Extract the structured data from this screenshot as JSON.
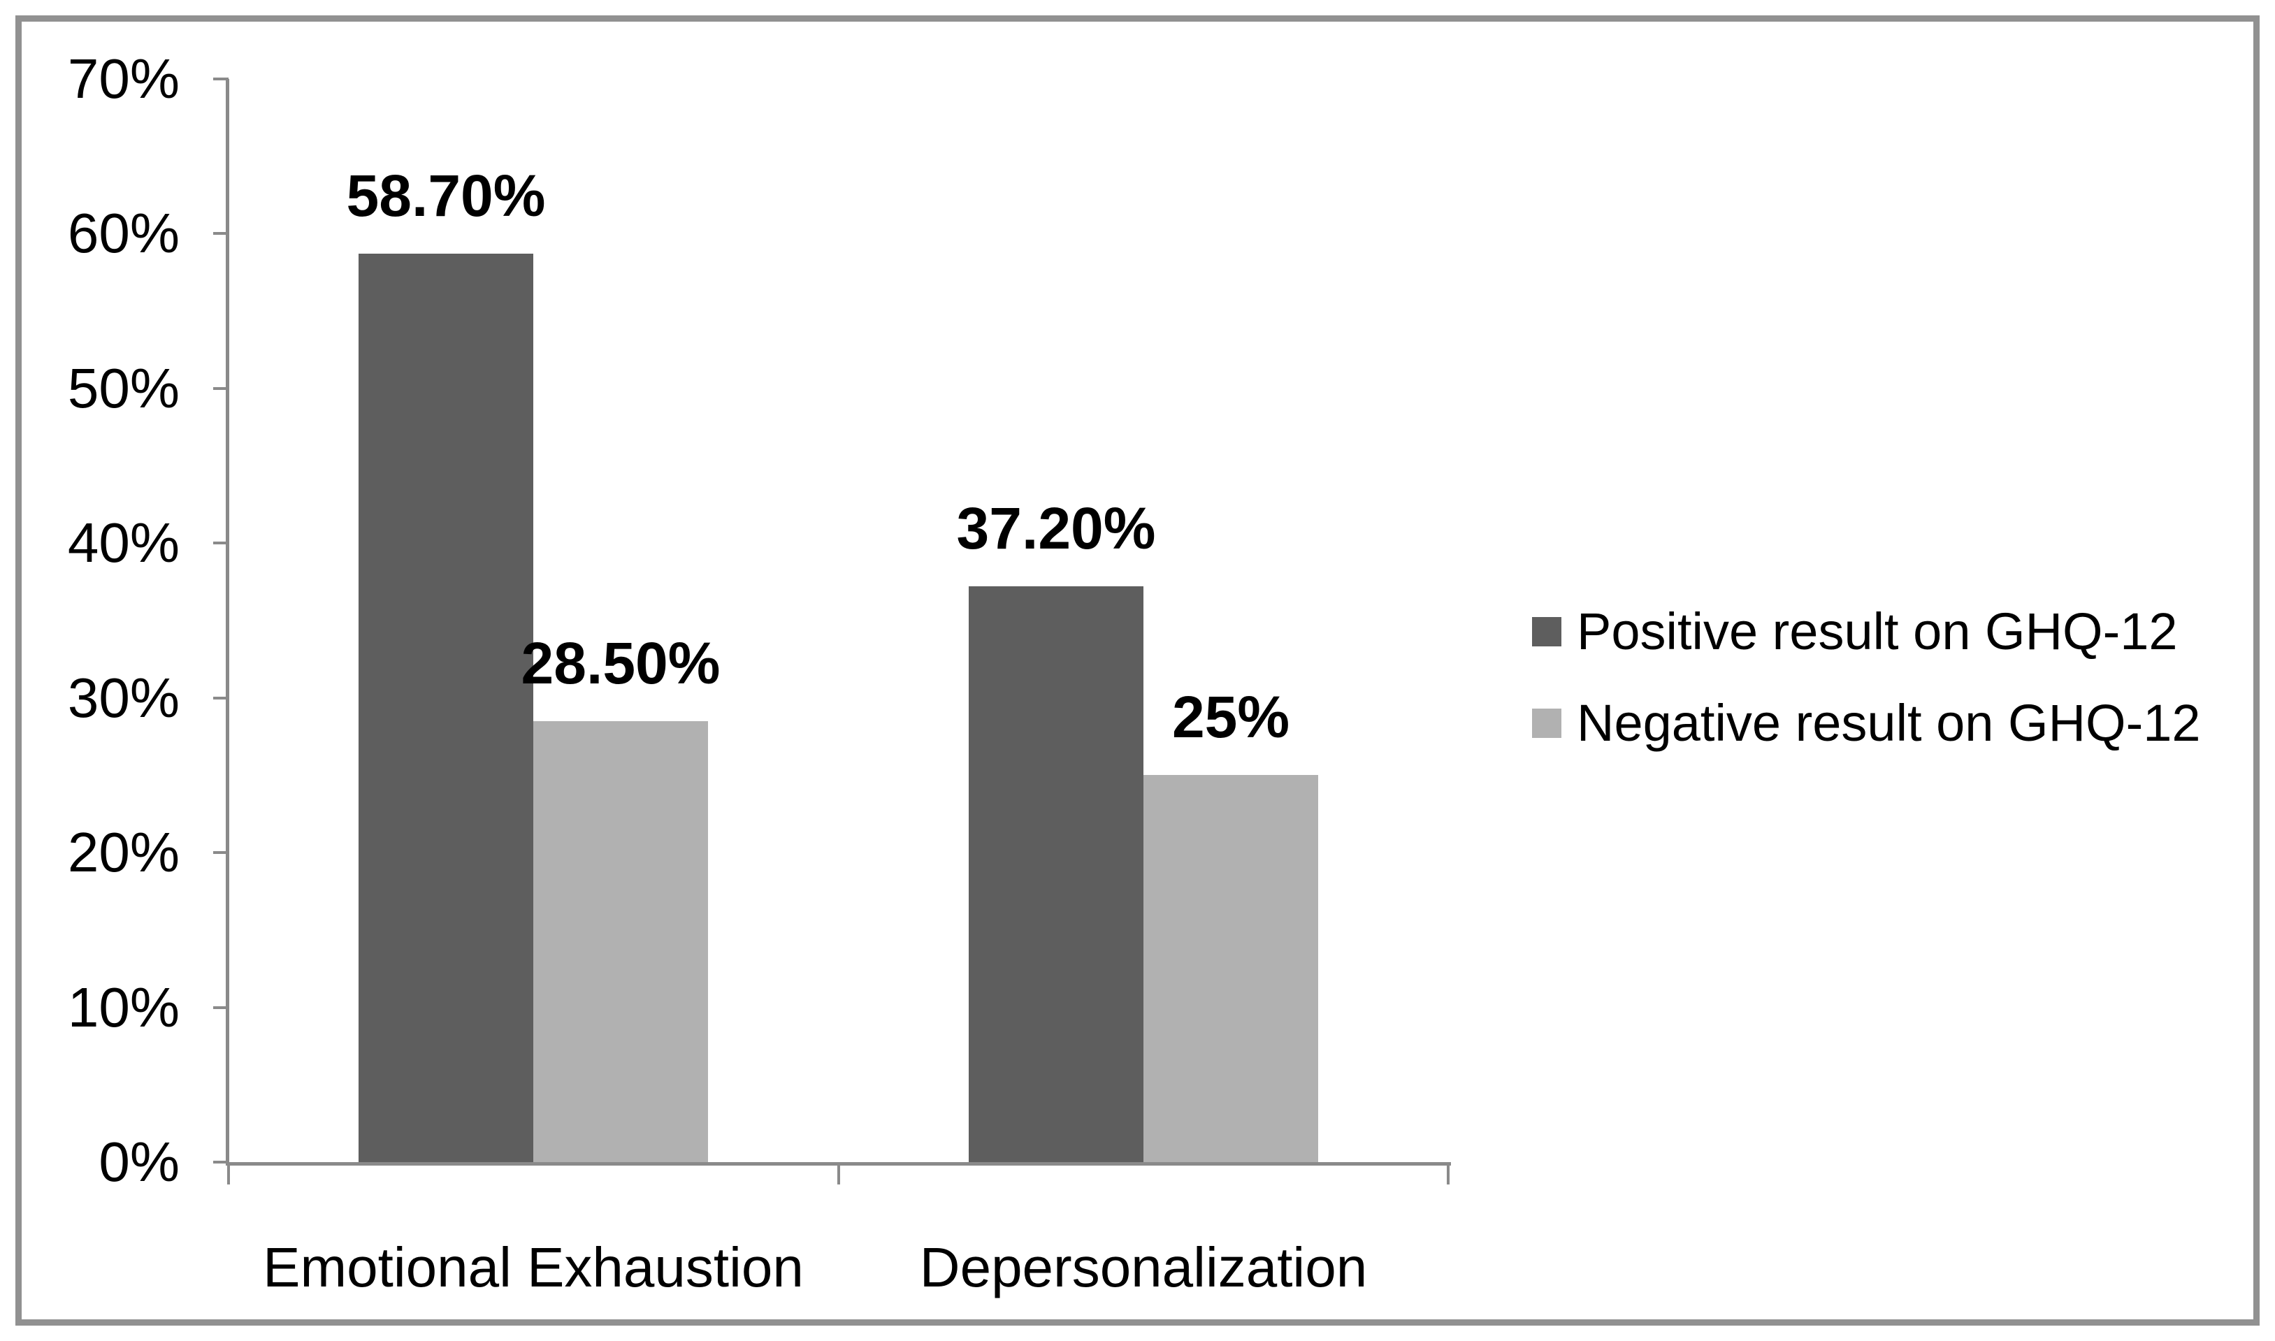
{
  "chart_data": {
    "type": "bar",
    "categories": [
      "Emotional Exhaustion",
      "Depersonalization"
    ],
    "series": [
      {
        "name": "Positive result on GHQ-12",
        "color": "#5e5e5e",
        "values": [
          58.7,
          37.2
        ],
        "value_labels": [
          "58.70%",
          "37.20%"
        ]
      },
      {
        "name": "Negative result on GHQ-12",
        "color": "#b1b1b1",
        "values": [
          28.5,
          25.0
        ],
        "value_labels": [
          "28.50%",
          "25%"
        ]
      }
    ],
    "title": "",
    "xlabel": "",
    "ylabel": "",
    "ylim": [
      0,
      70
    ],
    "ytick_step": 10,
    "ytick_labels": [
      "0%",
      "10%",
      "20%",
      "30%",
      "40%",
      "50%",
      "60%",
      "70%"
    ],
    "grid": false,
    "legend_position": "right"
  },
  "colors": {
    "axis": "#8a8a8a",
    "frame_border": "#919191",
    "text": "#000000",
    "background": "#ffffff"
  }
}
